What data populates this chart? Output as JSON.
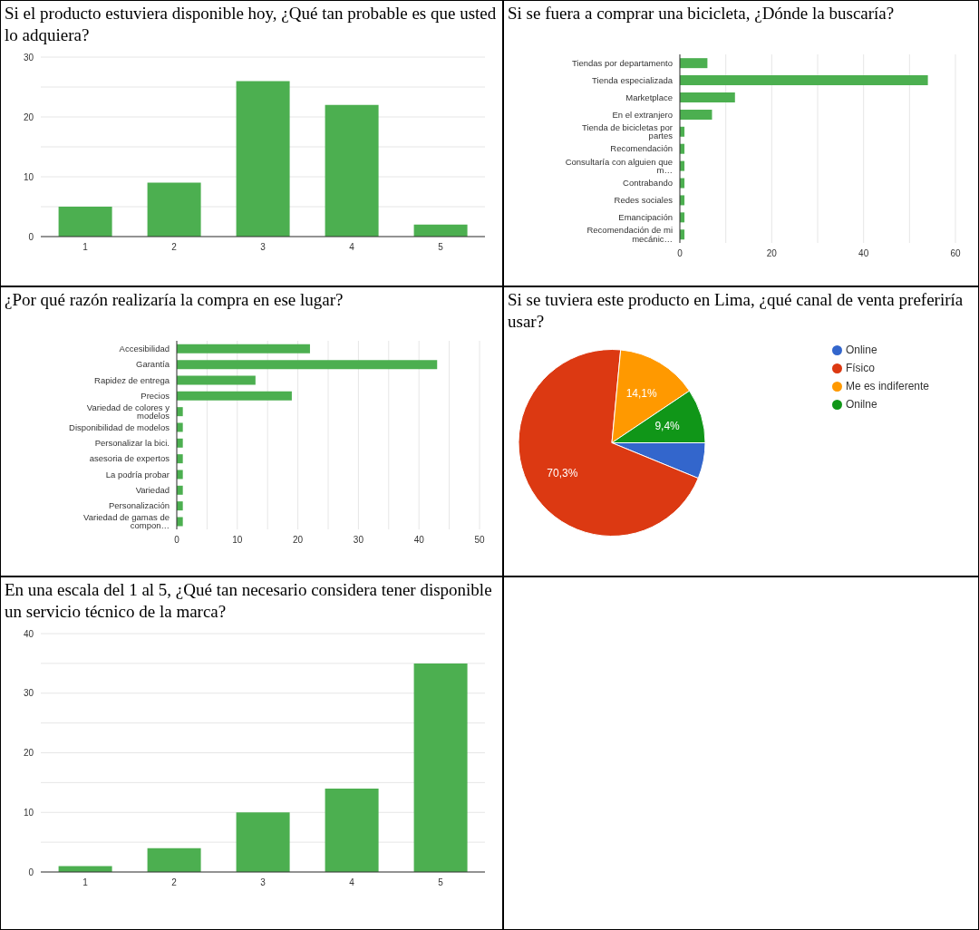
{
  "chart_data": [
    {
      "type": "bar",
      "title": "Si el producto estuviera disponible hoy, ¿Qué tan probable es que usted lo adquiera?",
      "categories": [
        "1",
        "2",
        "3",
        "4",
        "5"
      ],
      "values": [
        5,
        9,
        26,
        22,
        2
      ],
      "color": "#4caf50",
      "ylim": [
        0,
        30
      ],
      "yticks": [
        0,
        {
          "value": 5,
          "label": null
        },
        10,
        {
          "value": 15,
          "label": null
        },
        20,
        {
          "value": 25,
          "label": null
        },
        30
      ],
      "grid": "y"
    },
    {
      "type": "bar",
      "orientation": "horizontal",
      "title": "Si se fuera a comprar una bicicleta, ¿Dónde la buscaría?",
      "categories": [
        "Tiendas por departamento",
        "Tienda especializada",
        "Marketplace",
        "En el extranjero",
        "Tienda de bicicletas por partes",
        "Recomendación",
        "Consultaría con alguien que m…",
        "Contrabando",
        "Redes sociales",
        "Emancipación",
        "Recomendación de mi mecánic…"
      ],
      "values": [
        6,
        54,
        12,
        7,
        1,
        1,
        1,
        1,
        1,
        1,
        1
      ],
      "color": "#4caf50",
      "xlim": [
        0,
        60
      ],
      "xticks": [
        0,
        {
          "value": 10,
          "label": null
        },
        20,
        {
          "value": 30,
          "label": null
        },
        40,
        {
          "value": 50,
          "label": null
        },
        60
      ],
      "grid": "x"
    },
    {
      "type": "bar",
      "orientation": "horizontal",
      "title": "¿Por qué razón realizaría la compra en ese lugar?",
      "categories": [
        "Accesibilidad",
        "Garantía",
        "Rapidez de entrega",
        "Precios",
        "Variedad de colores y modelos",
        "Disponibilidad de modelos",
        "Personalizar la bici.",
        "asesoria de expertos",
        "La podría probar",
        "Variedad",
        "Personalización",
        "Variedad de gamas de compon…"
      ],
      "values": [
        22,
        43,
        13,
        19,
        1,
        1,
        1,
        1,
        1,
        1,
        1,
        1
      ],
      "color": "#4caf50",
      "xlim": [
        0,
        50
      ],
      "xticks": [
        0,
        {
          "value": 5,
          "label": null
        },
        10,
        {
          "value": 15,
          "label": null
        },
        20,
        {
          "value": 25,
          "label": null
        },
        30,
        {
          "value": 35,
          "label": null
        },
        40,
        {
          "value": 45,
          "label": null
        },
        50
      ],
      "grid": "x"
    },
    {
      "type": "pie",
      "title": "Si se tuviera este producto en Lima, ¿qué canal de venta preferiría usar?",
      "categories": [
        "Online",
        "Físico",
        "Me es indiferente",
        "Onilne"
      ],
      "values": [
        6.2,
        70.3,
        14.1,
        9.4
      ],
      "colors": [
        "#3366cc",
        "#dc3912",
        "#ff9900",
        "#109618"
      ],
      "value_labels": [
        null,
        "70,3%",
        "14,1%",
        "9,4%"
      ],
      "legend": "top right"
    },
    {
      "type": "bar",
      "title": "En una escala del 1 al 5, ¿Qué tan necesario considera tener disponible un servicio técnico de la marca?",
      "categories": [
        "1",
        "2",
        "3",
        "4",
        "5"
      ],
      "values": [
        1,
        4,
        10,
        14,
        35
      ],
      "color": "#4caf50",
      "ylim": [
        0,
        40
      ],
      "yticks": [
        0,
        {
          "value": 5,
          "label": null
        },
        10,
        {
          "value": 15,
          "label": null
        },
        20,
        {
          "value": 25,
          "label": null
        },
        30,
        {
          "value": 35,
          "label": null
        },
        40
      ],
      "grid": "y"
    }
  ]
}
